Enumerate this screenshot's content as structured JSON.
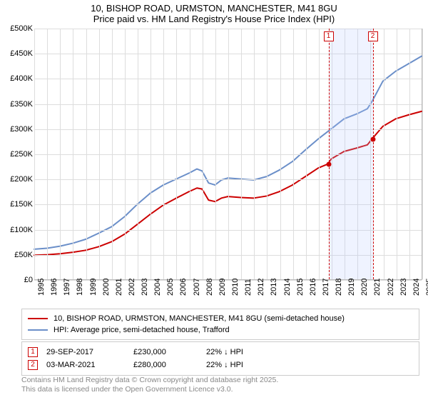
{
  "title": {
    "line1": "10, BISHOP ROAD, URMSTON, MANCHESTER, M41 8GU",
    "line2": "Price paid vs. HM Land Registry's House Price Index (HPI)"
  },
  "chart": {
    "type": "line",
    "background_color": "#ffffff",
    "grid_color": "#dddddd",
    "axis_color": "#bbbbbb",
    "title_fontsize": 13,
    "tick_fontsize": 11,
    "y": {
      "min": 0,
      "max": 500000,
      "step": 50000,
      "ticks": [
        "£0",
        "£50K",
        "£100K",
        "£150K",
        "£200K",
        "£250K",
        "£300K",
        "£350K",
        "£400K",
        "£450K",
        "£500K"
      ]
    },
    "x": {
      "min": 1995,
      "max": 2025,
      "ticks": [
        "1995",
        "1996",
        "1997",
        "1998",
        "1999",
        "2000",
        "2001",
        "2002",
        "2003",
        "2004",
        "2005",
        "2006",
        "2007",
        "2008",
        "2009",
        "2010",
        "2011",
        "2012",
        "2013",
        "2014",
        "2015",
        "2016",
        "2017",
        "2018",
        "2019",
        "2020",
        "2021",
        "2022",
        "2023",
        "2024",
        "2025"
      ]
    },
    "series": [
      {
        "id": "property",
        "label": "10, BISHOP ROAD, URMSTON, MANCHESTER, M41 8GU (semi-detached house)",
        "color": "#cc0000",
        "line_width": 2,
        "data": [
          [
            1995,
            48000
          ],
          [
            1996,
            49000
          ],
          [
            1997,
            51000
          ],
          [
            1998,
            54000
          ],
          [
            1999,
            58000
          ],
          [
            2000,
            65000
          ],
          [
            2001,
            75000
          ],
          [
            2002,
            90000
          ],
          [
            2003,
            110000
          ],
          [
            2004,
            130000
          ],
          [
            2005,
            148000
          ],
          [
            2006,
            162000
          ],
          [
            2007,
            175000
          ],
          [
            2007.6,
            182000
          ],
          [
            2008,
            180000
          ],
          [
            2008.5,
            158000
          ],
          [
            2009,
            155000
          ],
          [
            2009.5,
            162000
          ],
          [
            2010,
            165000
          ],
          [
            2011,
            163000
          ],
          [
            2012,
            162000
          ],
          [
            2013,
            166000
          ],
          [
            2014,
            175000
          ],
          [
            2015,
            188000
          ],
          [
            2016,
            205000
          ],
          [
            2017,
            222000
          ],
          [
            2017.75,
            230000
          ],
          [
            2018,
            240000
          ],
          [
            2019,
            255000
          ],
          [
            2020,
            262000
          ],
          [
            2020.8,
            268000
          ],
          [
            2021.17,
            280000
          ],
          [
            2022,
            305000
          ],
          [
            2023,
            320000
          ],
          [
            2024,
            328000
          ],
          [
            2025,
            335000
          ]
        ]
      },
      {
        "id": "hpi",
        "label": "HPI: Average price, semi-detached house, Trafford",
        "color": "#6b8fc9",
        "line_width": 2,
        "data": [
          [
            1995,
            60000
          ],
          [
            1996,
            62000
          ],
          [
            1997,
            66000
          ],
          [
            1998,
            72000
          ],
          [
            1999,
            80000
          ],
          [
            2000,
            92000
          ],
          [
            2001,
            105000
          ],
          [
            2002,
            125000
          ],
          [
            2003,
            150000
          ],
          [
            2004,
            172000
          ],
          [
            2005,
            188000
          ],
          [
            2006,
            200000
          ],
          [
            2007,
            212000
          ],
          [
            2007.6,
            220000
          ],
          [
            2008,
            216000
          ],
          [
            2008.5,
            192000
          ],
          [
            2009,
            188000
          ],
          [
            2009.5,
            198000
          ],
          [
            2010,
            202000
          ],
          [
            2011,
            200000
          ],
          [
            2012,
            198000
          ],
          [
            2013,
            205000
          ],
          [
            2014,
            218000
          ],
          [
            2015,
            235000
          ],
          [
            2016,
            258000
          ],
          [
            2017,
            280000
          ],
          [
            2018,
            300000
          ],
          [
            2019,
            320000
          ],
          [
            2020,
            330000
          ],
          [
            2020.8,
            340000
          ],
          [
            2021.17,
            355000
          ],
          [
            2022,
            395000
          ],
          [
            2023,
            415000
          ],
          [
            2024,
            430000
          ],
          [
            2025,
            445000
          ]
        ]
      }
    ],
    "markers": [
      {
        "n": "1",
        "year": 2017.75,
        "price": 230000
      },
      {
        "n": "2",
        "year": 2021.17,
        "price": 280000
      }
    ],
    "highlight_band": {
      "from_year": 2017.75,
      "to_year": 2021.17,
      "color": "rgba(180,200,255,0.22)"
    }
  },
  "legend": {
    "rows": [
      {
        "color": "#cc0000",
        "label": "10, BISHOP ROAD, URMSTON, MANCHESTER, M41 8GU (semi-detached house)"
      },
      {
        "color": "#6b8fc9",
        "label": "HPI: Average price, semi-detached house, Trafford"
      }
    ]
  },
  "transactions": [
    {
      "n": "1",
      "date": "29-SEP-2017",
      "price": "£230,000",
      "hpi": "22% ↓ HPI"
    },
    {
      "n": "2",
      "date": "03-MAR-2021",
      "price": "£280,000",
      "hpi": "22% ↓ HPI"
    }
  ],
  "footnote": {
    "line1": "Contains HM Land Registry data © Crown copyright and database right 2025.",
    "line2": "This data is licensed under the Open Government Licence v3.0."
  }
}
